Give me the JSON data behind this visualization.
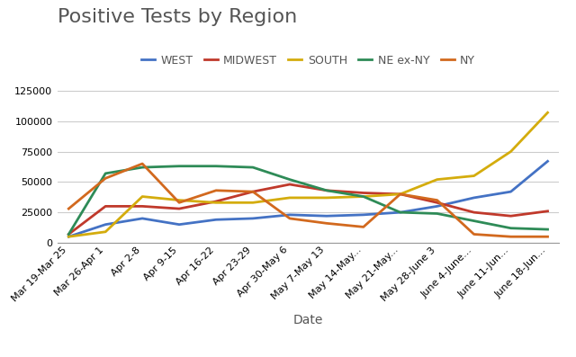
{
  "title": "Positive Tests by Region",
  "xlabel": "Date",
  "categories": [
    "Mar 19-Mar 25",
    "Mar 26-Apr 1",
    "Apr 2-8",
    "Apr 9-15",
    "Apr 16-22",
    "Apr 23-29",
    "Apr 30-May 6",
    "May 7-May 13",
    "May 14-May...",
    "May 21-May...",
    "May 28-June 3",
    "June 4-June...",
    "June 11-Jun...",
    "June 18-Jun..."
  ],
  "series": {
    "WEST": {
      "color": "#4472c4",
      "values": [
        5000,
        15000,
        20000,
        15000,
        19000,
        20000,
        23000,
        22000,
        23000,
        25000,
        30000,
        37000,
        42000,
        67000
      ]
    },
    "MIDWEST": {
      "color": "#c0392b",
      "values": [
        7000,
        30000,
        30000,
        28000,
        34000,
        42000,
        48000,
        43000,
        41000,
        40000,
        33000,
        25000,
        22000,
        26000
      ]
    },
    "SOUTH": {
      "color": "#d4ac0d",
      "values": [
        5000,
        9000,
        38000,
        35000,
        33000,
        33000,
        37000,
        37000,
        38000,
        40000,
        52000,
        55000,
        75000,
        107000
      ]
    },
    "NE ex-NY": {
      "color": "#2e8b57",
      "values": [
        7000,
        57000,
        62000,
        63000,
        63000,
        62000,
        52000,
        43000,
        38000,
        25000,
        24000,
        18000,
        12000,
        11000
      ]
    },
    "NY": {
      "color": "#d2691e",
      "values": [
        28000,
        53000,
        65000,
        33000,
        43000,
        42000,
        20000,
        16000,
        13000,
        40000,
        35000,
        7000,
        5000,
        5000
      ]
    }
  },
  "ylim": [
    0,
    135000
  ],
  "yticks": [
    0,
    25000,
    50000,
    75000,
    100000,
    125000
  ],
  "title_fontsize": 16,
  "legend_fontsize": 9,
  "tick_fontsize": 8,
  "axis_label_fontsize": 10,
  "background_color": "#ffffff",
  "grid_color": "#cccccc",
  "border_color": "#cccccc"
}
